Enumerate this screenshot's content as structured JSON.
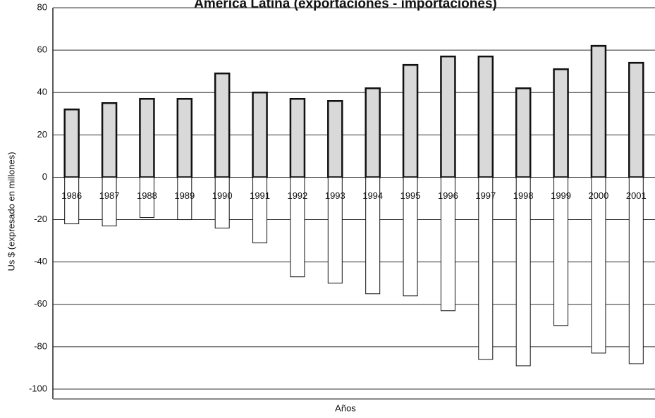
{
  "chart_data": {
    "type": "bar",
    "title": "América Latina (exportaciones - importaciones)",
    "x_label": "Años",
    "y_label": "Us $  (expresado en millones)",
    "categories": [
      "1986",
      "1987",
      "1988",
      "1989",
      "1990",
      "1991",
      "1992",
      "1993",
      "1994",
      "1995",
      "1996",
      "1997",
      "1998",
      "1999",
      "2000",
      "2001"
    ],
    "series": [
      {
        "color": "#d9d9d9",
        "values": [
          32,
          35,
          37,
          37,
          49,
          40,
          37,
          36,
          42,
          53,
          57,
          57,
          42,
          51,
          62,
          54
        ]
      },
      {
        "color": "#ffffff",
        "values": [
          -22,
          -23,
          -19,
          -20,
          -24,
          -31,
          -47,
          -50,
          -55,
          -56,
          -63,
          -86,
          -89,
          -70,
          -83,
          -88
        ]
      }
    ],
    "ylim": [
      -100,
      80
    ],
    "yticks": [
      -100,
      -80,
      -60,
      -40,
      -20,
      0,
      20,
      40,
      60,
      80
    ],
    "grid": true
  }
}
